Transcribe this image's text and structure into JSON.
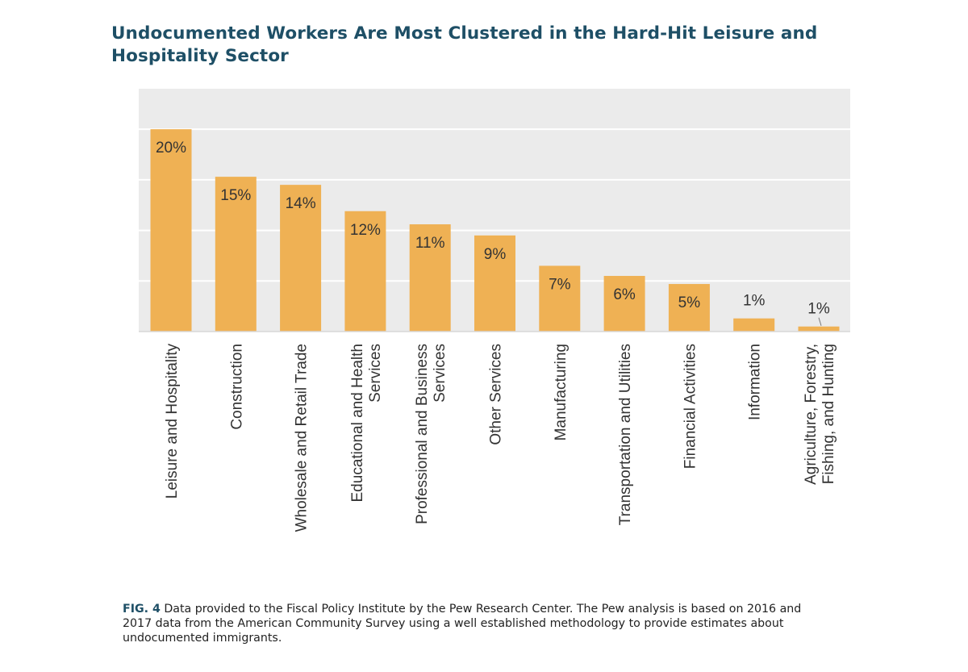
{
  "title_lines": [
    "Undocumented Workers Are Most Clustered in the Hard-Hit Leisure and",
    "Hospitality Sector"
  ],
  "caption": {
    "fig_label": "FIG. 4",
    "text": "Data provided to the Fiscal Policy Institute by the Pew Research Center. The Pew analysis is based on 2016 and 2017 data from the American Community Survey using a well established methodology to provide estimates about undocumented immigrants."
  },
  "colors": {
    "bar": "#efb154",
    "plot_background": "#ebebeb",
    "gridline": "#ffffff",
    "title": "#1e4f66",
    "text": "#333333"
  },
  "chart_data": {
    "type": "bar",
    "title": "Undocumented Workers Are Most Clustered in the Hard-Hit Leisure and Hospitality Sector",
    "xlabel": "",
    "ylabel": "",
    "ylim": [
      0,
      24
    ],
    "grid": true,
    "gridline_step": 5,
    "categories": [
      [
        "Leisure and Hospitality"
      ],
      [
        "Construction"
      ],
      [
        "Wholesale and Retail Trade"
      ],
      [
        "Educational and Health",
        "Services"
      ],
      [
        "Professional and Business",
        "Services"
      ],
      [
        "Other Services"
      ],
      [
        "Manufacturing"
      ],
      [
        "Transportation and Utilities"
      ],
      [
        "Financial Activities"
      ],
      [
        "Information"
      ],
      [
        "Agriculture, Forestry,",
        "Fishing, and Hunting"
      ]
    ],
    "values": [
      20,
      15.3,
      14.5,
      11.9,
      10.6,
      9.5,
      6.5,
      5.5,
      4.7,
      1.3,
      0.5
    ],
    "data_labels": [
      "20%",
      "15%",
      "14%",
      "12%",
      "11%",
      "9%",
      "7%",
      "6%",
      "5%",
      "1%",
      "1%"
    ]
  }
}
